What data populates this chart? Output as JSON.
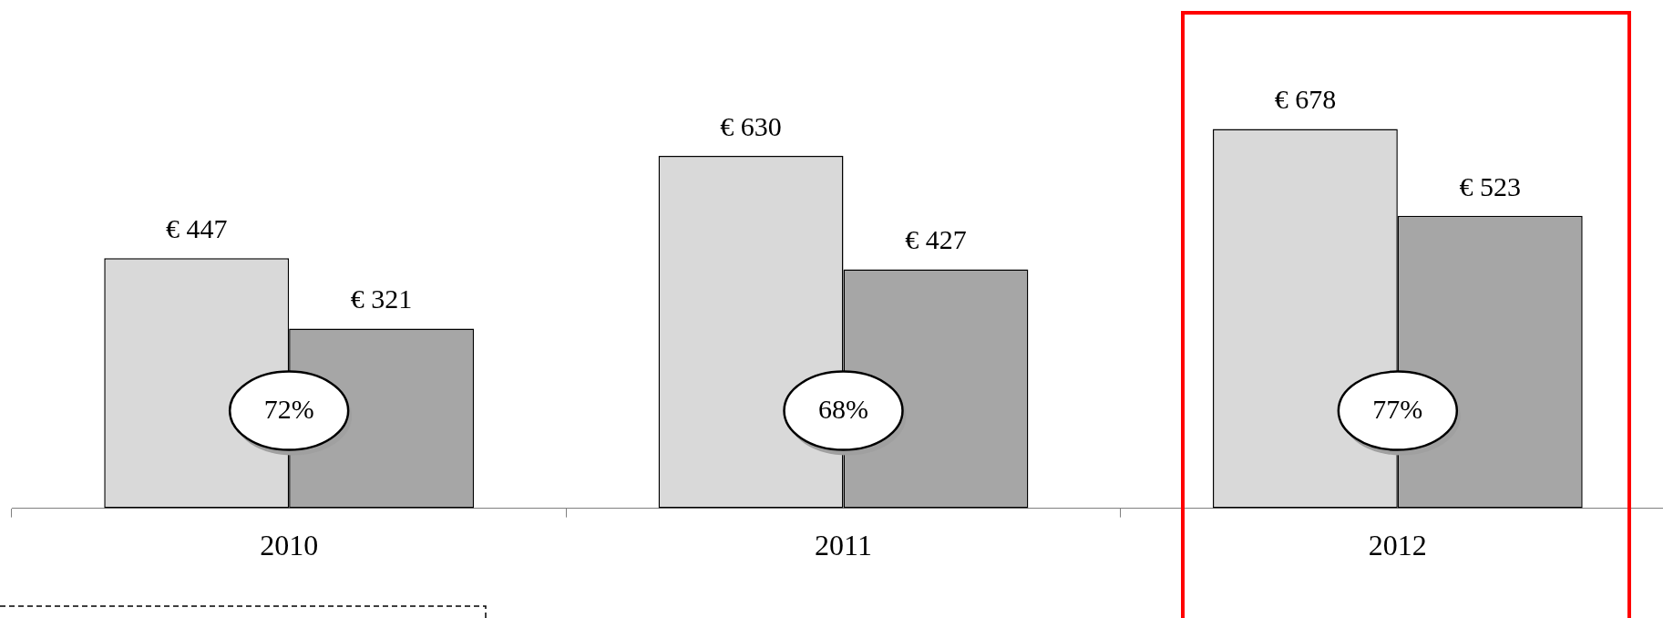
{
  "chart_data": {
    "type": "bar",
    "categories": [
      "2010",
      "2011",
      "2012"
    ],
    "series": [
      {
        "color": "#d9d9d9",
        "values": [
          447,
          630,
          678
        ],
        "value_labels": [
          "€ 447",
          "€ 630",
          "€ 678"
        ]
      },
      {
        "color": "#a6a6a6",
        "values": [
          321,
          427,
          523
        ],
        "value_labels": [
          "€ 321",
          "€ 427",
          "€ 523"
        ]
      }
    ],
    "annotations": [
      {
        "text": "72%",
        "x": "2010"
      },
      {
        "text": "68%",
        "x": "2011"
      },
      {
        "text": "77%",
        "x": "2012"
      }
    ],
    "grid": false,
    "legend": false,
    "tick_labels": "x"
  }
}
